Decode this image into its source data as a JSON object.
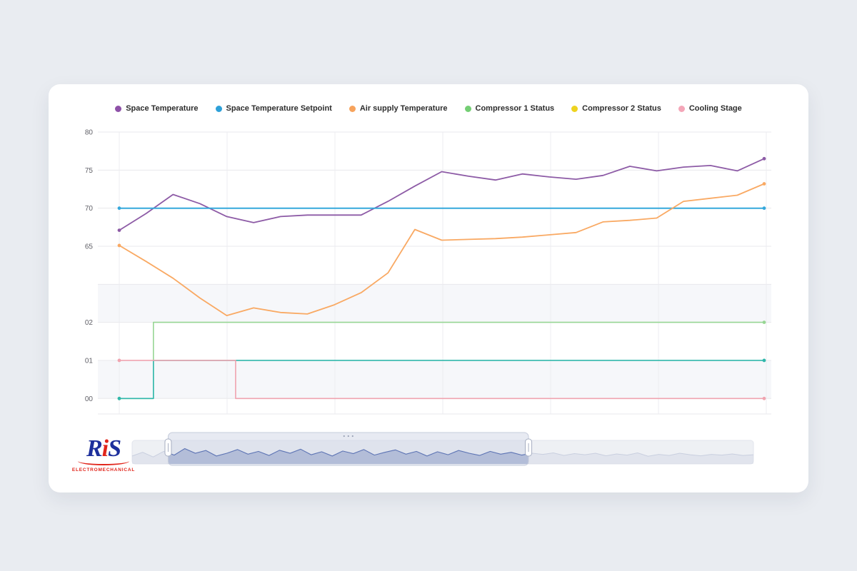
{
  "page": {
    "background": "#e9ecf1",
    "card_background": "#ffffff"
  },
  "legend": {
    "items": [
      {
        "label": "Space Temperature",
        "color": "#8e51a8"
      },
      {
        "label": "Space Temperature Setpoint",
        "color": "#2da0d8"
      },
      {
        "label": "Air supply Temperature",
        "color": "#f7a35c"
      },
      {
        "label": "Compressor 1 Status",
        "color": "#74ce74"
      },
      {
        "label": "Compressor 2 Status",
        "color": "#eed31f"
      },
      {
        "label": "Cooling Stage",
        "color": "#f4a6b8"
      }
    ]
  },
  "chart_data": {
    "type": "line",
    "title": "",
    "x_count": 25,
    "y_axis_temp": {
      "ticks": [
        80,
        75,
        70,
        65
      ],
      "range_top": 80
    },
    "y_axis_status": {
      "ticks": [
        2,
        1,
        0
      ],
      "labels": [
        "02",
        "01",
        "00"
      ]
    },
    "series": [
      {
        "name": "Space Temperature",
        "axis": "temp",
        "color": "#8d5ba6",
        "width": 1.8,
        "values": [
          67.1,
          69.3,
          71.8,
          70.6,
          68.9,
          68.1,
          68.9,
          69.1,
          69.1,
          69.1,
          70.9,
          72.9,
          74.8,
          74.2,
          73.7,
          74.5,
          74.1,
          73.8,
          74.3,
          75.5,
          74.9,
          75.4,
          75.6,
          74.9,
          76.5
        ]
      },
      {
        "name": "Space Temperature Setpoint",
        "axis": "temp",
        "color": "#35a8dc",
        "width": 2,
        "constant": 70
      },
      {
        "name": "Air supply Temperature",
        "axis": "temp",
        "color": "#f9a963",
        "width": 1.8,
        "values": [
          65.1,
          63.0,
          60.8,
          58.2,
          55.9,
          56.9,
          56.3,
          56.1,
          57.3,
          58.9,
          61.5,
          67.2,
          65.8,
          65.9,
          66.0,
          66.2,
          66.5,
          66.8,
          68.2,
          68.4,
          68.7,
          70.9,
          71.3,
          71.7,
          73.2
        ]
      },
      {
        "name": "Compressor 1 Status",
        "axis": "status",
        "color": "#97d694",
        "width": 1.6,
        "points": [
          [
            0,
            0
          ],
          [
            1.27,
            0
          ],
          [
            1.27,
            2
          ],
          [
            24,
            2
          ]
        ]
      },
      {
        "name": "Compressor 2 Status",
        "axis": "status",
        "color": "#30b7ab",
        "width": 1.6,
        "points": [
          [
            0,
            0
          ],
          [
            1.27,
            0
          ],
          [
            1.27,
            1
          ],
          [
            24,
            1
          ]
        ]
      },
      {
        "name": "Cooling Stage",
        "axis": "status",
        "color": "#f0a4b0",
        "width": 1.6,
        "points": [
          [
            0,
            1
          ],
          [
            4.33,
            1
          ],
          [
            4.33,
            0
          ],
          [
            24,
            0
          ]
        ]
      }
    ]
  },
  "navigator": {
    "selection": {
      "from": 0.058,
      "to": 0.638
    },
    "spark": [
      0.35,
      0.55,
      0.3,
      0.6,
      0.4,
      0.75,
      0.5,
      0.65,
      0.35,
      0.5,
      0.7,
      0.45,
      0.6,
      0.38,
      0.66,
      0.5,
      0.72,
      0.42,
      0.58,
      0.35,
      0.62,
      0.48,
      0.7,
      0.4,
      0.55,
      0.68,
      0.45,
      0.6,
      0.35,
      0.58,
      0.42,
      0.65,
      0.5,
      0.38,
      0.6,
      0.45,
      0.55,
      0.4,
      0.5,
      0.44,
      0.52,
      0.38,
      0.48,
      0.42,
      0.5,
      0.36,
      0.46,
      0.4,
      0.52,
      0.34,
      0.44,
      0.38,
      0.5,
      0.42,
      0.36,
      0.44,
      0.4,
      0.46,
      0.38,
      0.42
    ]
  },
  "logo": {
    "part1": "R",
    "part2": "i",
    "part3": "S",
    "subtitle": "ELECTROMECHANICAL"
  }
}
